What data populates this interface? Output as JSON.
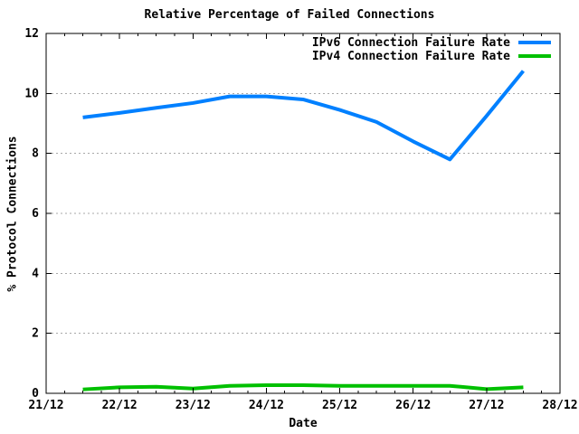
{
  "chart_data": {
    "type": "line",
    "title": "Relative Percentage of Failed Connections",
    "xlabel": "Date",
    "ylabel": "% Protocol Connections",
    "x_tick_labels": [
      "21/12",
      "22/12",
      "23/12",
      "24/12",
      "25/12",
      "26/12",
      "27/12",
      "28/12"
    ],
    "x_tick_values": [
      21,
      22,
      23,
      24,
      25,
      26,
      27,
      28
    ],
    "x_minor_tick_interval": 0.25,
    "y_tick_values": [
      0,
      2,
      4,
      6,
      8,
      10,
      12
    ],
    "xlim": [
      21,
      28
    ],
    "ylim": [
      0,
      12
    ],
    "grid": {
      "horizontal": true,
      "vertical": false,
      "style": "dotted"
    },
    "legend_position": "top-right-inside",
    "x": [
      21.5,
      22,
      22.5,
      23,
      23.5,
      24,
      24.5,
      25,
      25.5,
      26,
      26.5,
      27,
      27.5
    ],
    "series": [
      {
        "name": "IPv6 Connection Failure Rate",
        "color": "#0080ff",
        "values": [
          9.2,
          9.35,
          9.52,
          9.68,
          9.9,
          9.9,
          9.8,
          9.45,
          9.05,
          8.4,
          7.8,
          9.25,
          10.75
        ]
      },
      {
        "name": "IPv4 Connection Failure Rate",
        "color": "#00c000",
        "values": [
          0.13,
          0.2,
          0.22,
          0.16,
          0.25,
          0.27,
          0.27,
          0.25,
          0.25,
          0.25,
          0.25,
          0.14,
          0.2
        ]
      }
    ],
    "colors": {
      "background": "#ffffff",
      "text": "#000000",
      "axis": "#000000",
      "grid": "#a8a8a8"
    }
  }
}
